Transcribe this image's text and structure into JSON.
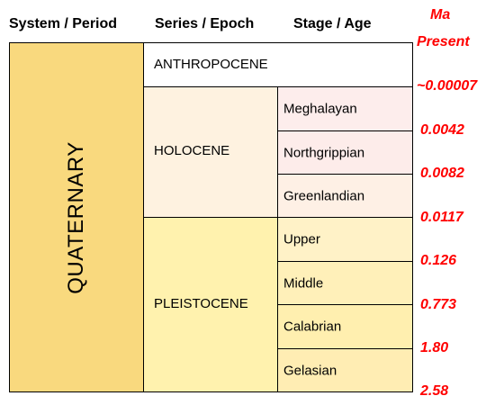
{
  "headers": {
    "system": "System / Period",
    "series": "Series / Epoch",
    "stage": "Stage / Age",
    "ma": "Ma"
  },
  "period": {
    "name": "QUATERNARY",
    "color": "#f9d97e"
  },
  "epochs": {
    "anthropocene": {
      "name": "ANTHROPOCENE",
      "color": "#ffffff"
    },
    "holocene": {
      "name": "HOLOCENE",
      "color": "#fef2e0"
    },
    "pleistocene": {
      "name": "PLEISTOCENE",
      "color": "#fff2ae"
    }
  },
  "ages": [
    {
      "name": "Meghalayan",
      "color": "#fdedec"
    },
    {
      "name": "Northgrippian",
      "color": "#fdecea"
    },
    {
      "name": "Greenlandian",
      "color": "#fef0e5"
    },
    {
      "name": "Upper",
      "color": "#fff2c7"
    },
    {
      "name": "Middle",
      "color": "#fff0b9"
    },
    {
      "name": "Calabrian",
      "color": "#ffefaf"
    },
    {
      "name": "Gelasian",
      "color": "#ffedb3"
    }
  ],
  "boundaries": [
    "Present",
    "~0.00007",
    "0.0042",
    "0.0082",
    "0.0117",
    "0.126",
    "0.773",
    "1.80",
    "2.58"
  ],
  "label_color": "#ff0000"
}
